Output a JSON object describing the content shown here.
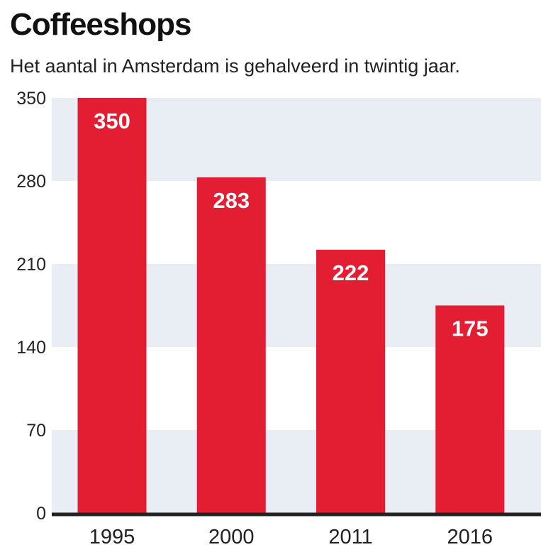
{
  "chart_data": {
    "type": "bar",
    "title": "Coffeeshops",
    "subtitle": "Het aantal in Amsterdam is gehalveerd in twintig jaar.",
    "categories": [
      "1995",
      "2000",
      "2011",
      "2016"
    ],
    "values": [
      350,
      283,
      222,
      175
    ],
    "data_labels": [
      "350",
      "283",
      "222",
      "175"
    ],
    "yticks": [
      0,
      70,
      140,
      210,
      280,
      350
    ],
    "ylim": [
      0,
      350
    ],
    "xlabel": "",
    "ylabel": "",
    "grid": "alternating horizontal bands",
    "legend": "none",
    "colors": {
      "bar": "#e31e33",
      "band": "#e8eef3",
      "axis": "#222222"
    }
  }
}
